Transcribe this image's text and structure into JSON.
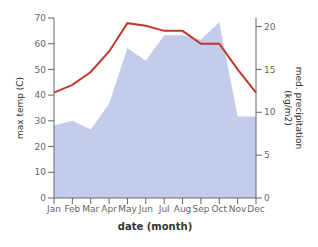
{
  "chart_data": {
    "type": "line",
    "xlabel": "date (month)",
    "ylabel": "max temp (C)",
    "y2label": "med. precipitation\n(kg/m2)",
    "categories": [
      "Jan",
      "Feb",
      "Mar",
      "Apr",
      "May",
      "Jun",
      "Jul",
      "Aug",
      "Sep",
      "Oct",
      "Nov",
      "Dec"
    ],
    "series": [
      {
        "type": "line",
        "color": "#c0392b",
        "values": [
          41,
          44,
          49,
          57,
          68,
          67,
          65,
          65,
          60,
          60,
          50,
          41
        ]
      },
      {
        "type": "area",
        "axis": "y2",
        "color": "#b8c4e8",
        "values": [
          8.5,
          9.0,
          8.0,
          11.0,
          17.5,
          16.0,
          19.0,
          19.0,
          18.5,
          20.5,
          9.5,
          9.5
        ]
      }
    ],
    "ylim": [
      0,
      70
    ],
    "yticks": [
      0,
      10,
      20,
      30,
      40,
      50,
      60,
      70
    ],
    "y2lim": [
      0,
      21
    ],
    "y2ticks": [
      0,
      5,
      10,
      15,
      20
    ],
    "grid": false
  }
}
